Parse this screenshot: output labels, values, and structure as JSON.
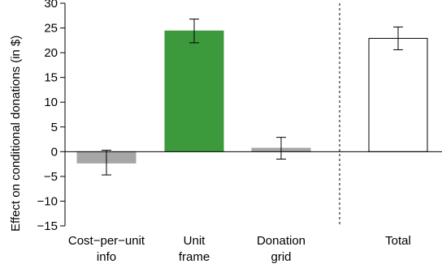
{
  "chart_data": {
    "type": "bar",
    "title": "",
    "xlabel": "",
    "ylabel": "Effect on conditional donations (in $)",
    "ylim": [
      -15,
      30
    ],
    "yticks": [
      -15,
      -10,
      -5,
      0,
      5,
      10,
      15,
      20,
      25,
      30
    ],
    "grid": false,
    "categories": [
      {
        "lines": [
          "Cost−per−unit",
          "info"
        ]
      },
      {
        "lines": [
          "Unit",
          "frame"
        ]
      },
      {
        "lines": [
          "Donation",
          "grid"
        ]
      },
      {
        "lines": [
          "Total"
        ]
      }
    ],
    "values": [
      -2.3,
      24.4,
      0.7,
      22.9
    ],
    "error_low": [
      -4.7,
      22.0,
      -1.5,
      20.6
    ],
    "error_high": [
      0.3,
      26.8,
      2.9,
      25.2
    ],
    "bar_fill_colors": [
      "#a6a6a6",
      "#3c9a3c",
      "#a6a6a6",
      "#ffffff"
    ],
    "bar_edge_colors": [
      "#a6a6a6",
      "#3c9a3c",
      "#a6a6a6",
      "#000000"
    ],
    "separator_after_category": 3,
    "separator_style": "dashed"
  }
}
